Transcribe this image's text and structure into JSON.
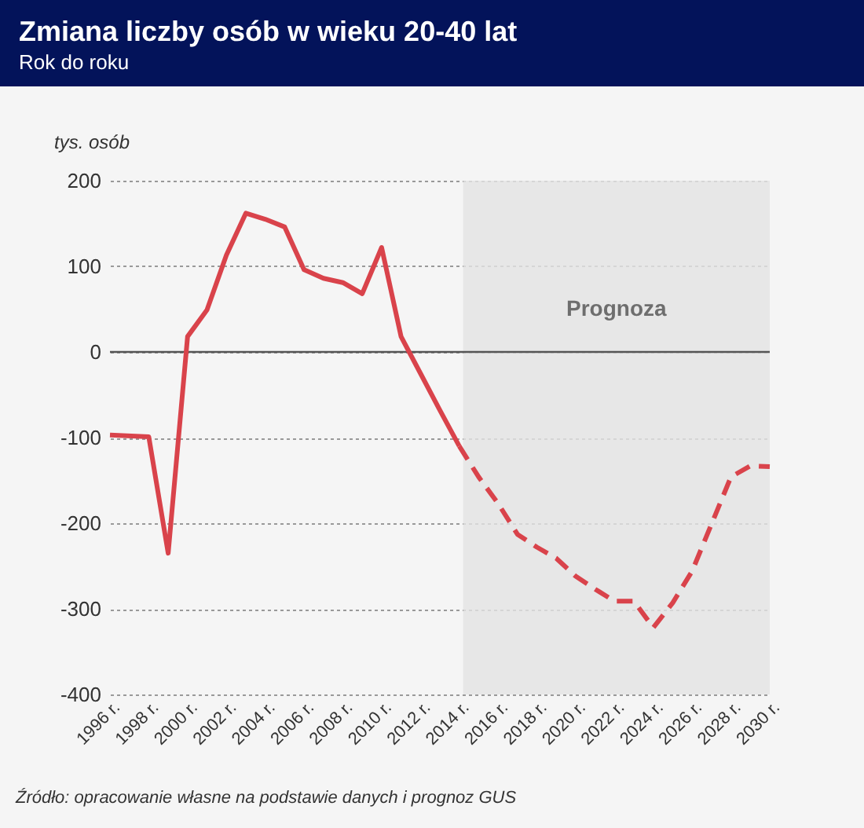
{
  "chart_data": {
    "type": "line",
    "title": "Zmiana liczby osób w wieku 20-40 lat",
    "subtitle": "Rok do roku",
    "ylabel": "tys. osób",
    "series": [
      {
        "color": "#d9434b",
        "line_style": "solid",
        "x": [
          1996,
          1998,
          1999,
          2000,
          2001,
          2002,
          2003,
          2004,
          2005,
          2006,
          2007,
          2008,
          2009,
          2010,
          2011,
          2012,
          2013,
          2014
        ],
        "values": [
          -97,
          -99,
          -235,
          18,
          49,
          113,
          162,
          155,
          146,
          96,
          86,
          81,
          68,
          122,
          18,
          -25,
          -68,
          -110
        ]
      },
      {
        "color": "#d9434b",
        "line_style": "dashed",
        "x": [
          2014,
          2015,
          2016,
          2017,
          2018,
          2019,
          2020,
          2021,
          2022,
          2023,
          2024,
          2025,
          2026,
          2027,
          2028,
          2029,
          2030
        ],
        "values": [
          -110,
          -146,
          -177,
          -213,
          -228,
          -241,
          -262,
          -277,
          -291,
          -291,
          -322,
          -293,
          -256,
          -201,
          -146,
          -133,
          -134
        ]
      }
    ],
    "xlim": [
      1996,
      2030
    ],
    "xticks": [
      {
        "value": 1996,
        "label": "1996 r."
      },
      {
        "value": 1998,
        "label": "1998 r."
      },
      {
        "value": 2000,
        "label": "2000 r."
      },
      {
        "value": 2002,
        "label": "2002 r."
      },
      {
        "value": 2004,
        "label": "2004 r."
      },
      {
        "value": 2006,
        "label": "2006 r."
      },
      {
        "value": 2008,
        "label": "2008 r."
      },
      {
        "value": 2010,
        "label": "2010 r."
      },
      {
        "value": 2012,
        "label": "2012 r."
      },
      {
        "value": 2014,
        "label": "2014 r."
      },
      {
        "value": 2016,
        "label": "2016 r."
      },
      {
        "value": 2018,
        "label": "2018 r."
      },
      {
        "value": 2020,
        "label": "2020 r."
      },
      {
        "value": 2022,
        "label": "2022 r."
      },
      {
        "value": 2024,
        "label": "2024 r."
      },
      {
        "value": 2026,
        "label": "2026 r."
      },
      {
        "value": 2028,
        "label": "2028 r."
      },
      {
        "value": 2030,
        "label": "2030 r."
      }
    ],
    "ylim": [
      -400,
      200
    ],
    "yticks": [
      -400,
      -300,
      -200,
      -100,
      0,
      100,
      200
    ],
    "grid": "y",
    "ref_lines": [
      {
        "axis": "y",
        "value": 0,
        "color": "#555555"
      }
    ],
    "bands": [
      {
        "axis": "x",
        "from": 2014.2,
        "to": 2030,
        "label": "Prognoza",
        "color": "#e4e4e4"
      }
    ],
    "annotations": [
      "Źródło: opracowanie własne na podstawie danych i prognoz GUS"
    ]
  }
}
